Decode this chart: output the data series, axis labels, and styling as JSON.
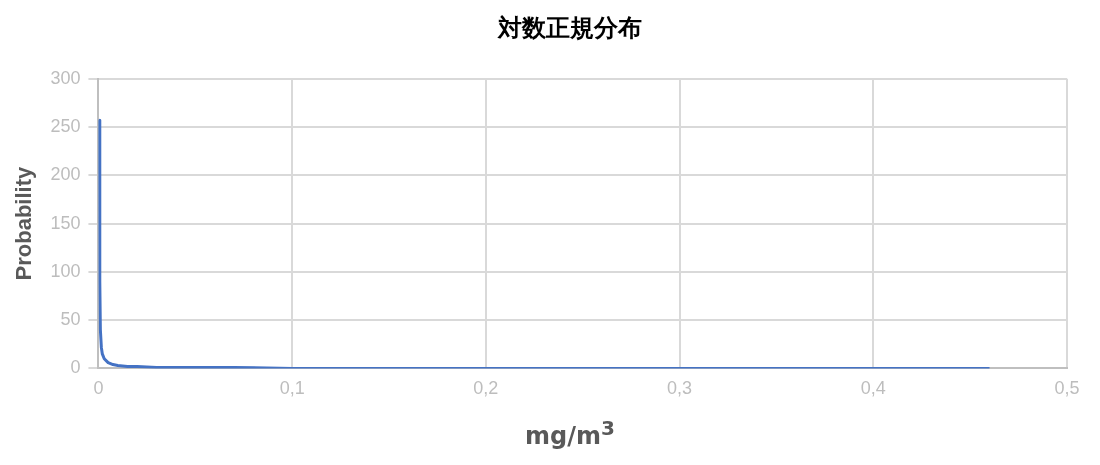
{
  "chart_data": {
    "type": "line",
    "title": "対数正規分布",
    "xlabel": "mg/m$^{3}$",
    "ylabel": "Probability",
    "x": [
      0.0005,
      0.0007,
      0.001,
      0.0015,
      0.002,
      0.003,
      0.005,
      0.0075,
      0.01,
      0.015,
      0.02,
      0.03,
      0.05,
      0.07,
      0.1,
      0.15,
      0.2,
      0.25,
      0.3,
      0.35,
      0.4,
      0.46
    ],
    "series": [
      {
        "color": "#4472c4",
        "values": [
          257,
          90,
          40,
          22,
          15,
          10,
          6,
          4,
          3,
          2,
          2,
          1,
          1,
          1,
          0,
          0,
          0,
          0,
          0,
          0,
          0,
          0
        ]
      }
    ],
    "xlim": [
      0,
      0.5
    ],
    "xticks": [
      0,
      {
        "value": 0.1,
        "label": "0,1"
      },
      {
        "value": 0.2,
        "label": "0,2"
      },
      {
        "value": 0.3,
        "label": "0,3"
      },
      {
        "value": 0.4,
        "label": "0,4"
      },
      {
        "value": 0.5,
        "label": "0,5"
      }
    ],
    "ylim": [
      0,
      300
    ],
    "yticks": [
      0,
      50,
      100,
      150,
      200,
      250,
      300
    ],
    "grid": true,
    "legend": false,
    "marker": "none",
    "line_style": "solid"
  }
}
